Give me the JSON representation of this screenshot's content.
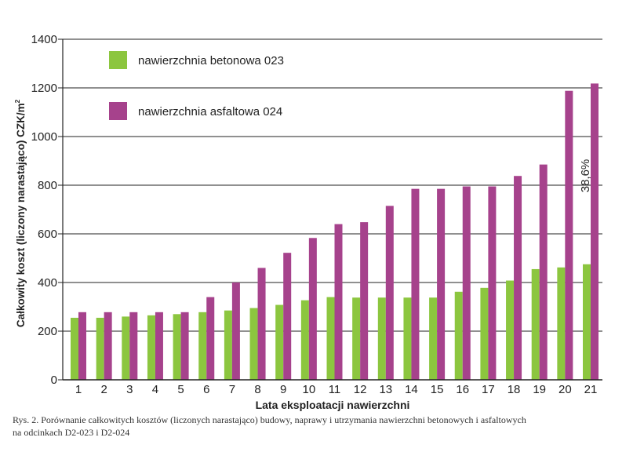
{
  "chart_data": {
    "type": "bar",
    "title": "",
    "xlabel": "Lata eksploatacji nawierzchni",
    "ylabel": "Całkowity koszt (liczony narastająco) CZK/m",
    "ylabel_superscript": "2",
    "ylim": [
      0,
      1400
    ],
    "yticks": [
      "0",
      "200",
      "400",
      "600",
      "800",
      "1000",
      "1200",
      "1400"
    ],
    "grid": true,
    "legend_position": "top-left",
    "categories": [
      "1",
      "2",
      "3",
      "4",
      "5",
      "6",
      "7",
      "8",
      "9",
      "10",
      "11",
      "12",
      "13",
      "14",
      "15",
      "16",
      "17",
      "18",
      "19",
      "20",
      "21"
    ],
    "series": [
      {
        "name": "nawierzchnia betonowa 023",
        "color": "#8cc63f",
        "values": [
          255,
          255,
          260,
          265,
          270,
          278,
          285,
          295,
          308,
          327,
          340,
          338,
          338,
          338,
          338,
          362,
          378,
          408,
          455,
          462,
          475
        ]
      },
      {
        "name": "nawierzchnia asfaltowa 024",
        "color": "#a6428c",
        "values": [
          278,
          278,
          278,
          278,
          278,
          340,
          400,
          460,
          522,
          583,
          640,
          648,
          715,
          785,
          785,
          795,
          795,
          838,
          885,
          1188,
          1218
        ]
      }
    ],
    "annotations": [
      {
        "text": "38,6%",
        "category": "21",
        "y": 1000,
        "orientation": "vertical"
      }
    ]
  },
  "caption": {
    "line1": "Rys. 2. Porównanie całkowitych kosztów (liczonych narastająco) budowy, naprawy i utrzymania nawierzchni betonowych i asfaltowych",
    "line2": "na odcinkach D2-023 i D2-024"
  }
}
